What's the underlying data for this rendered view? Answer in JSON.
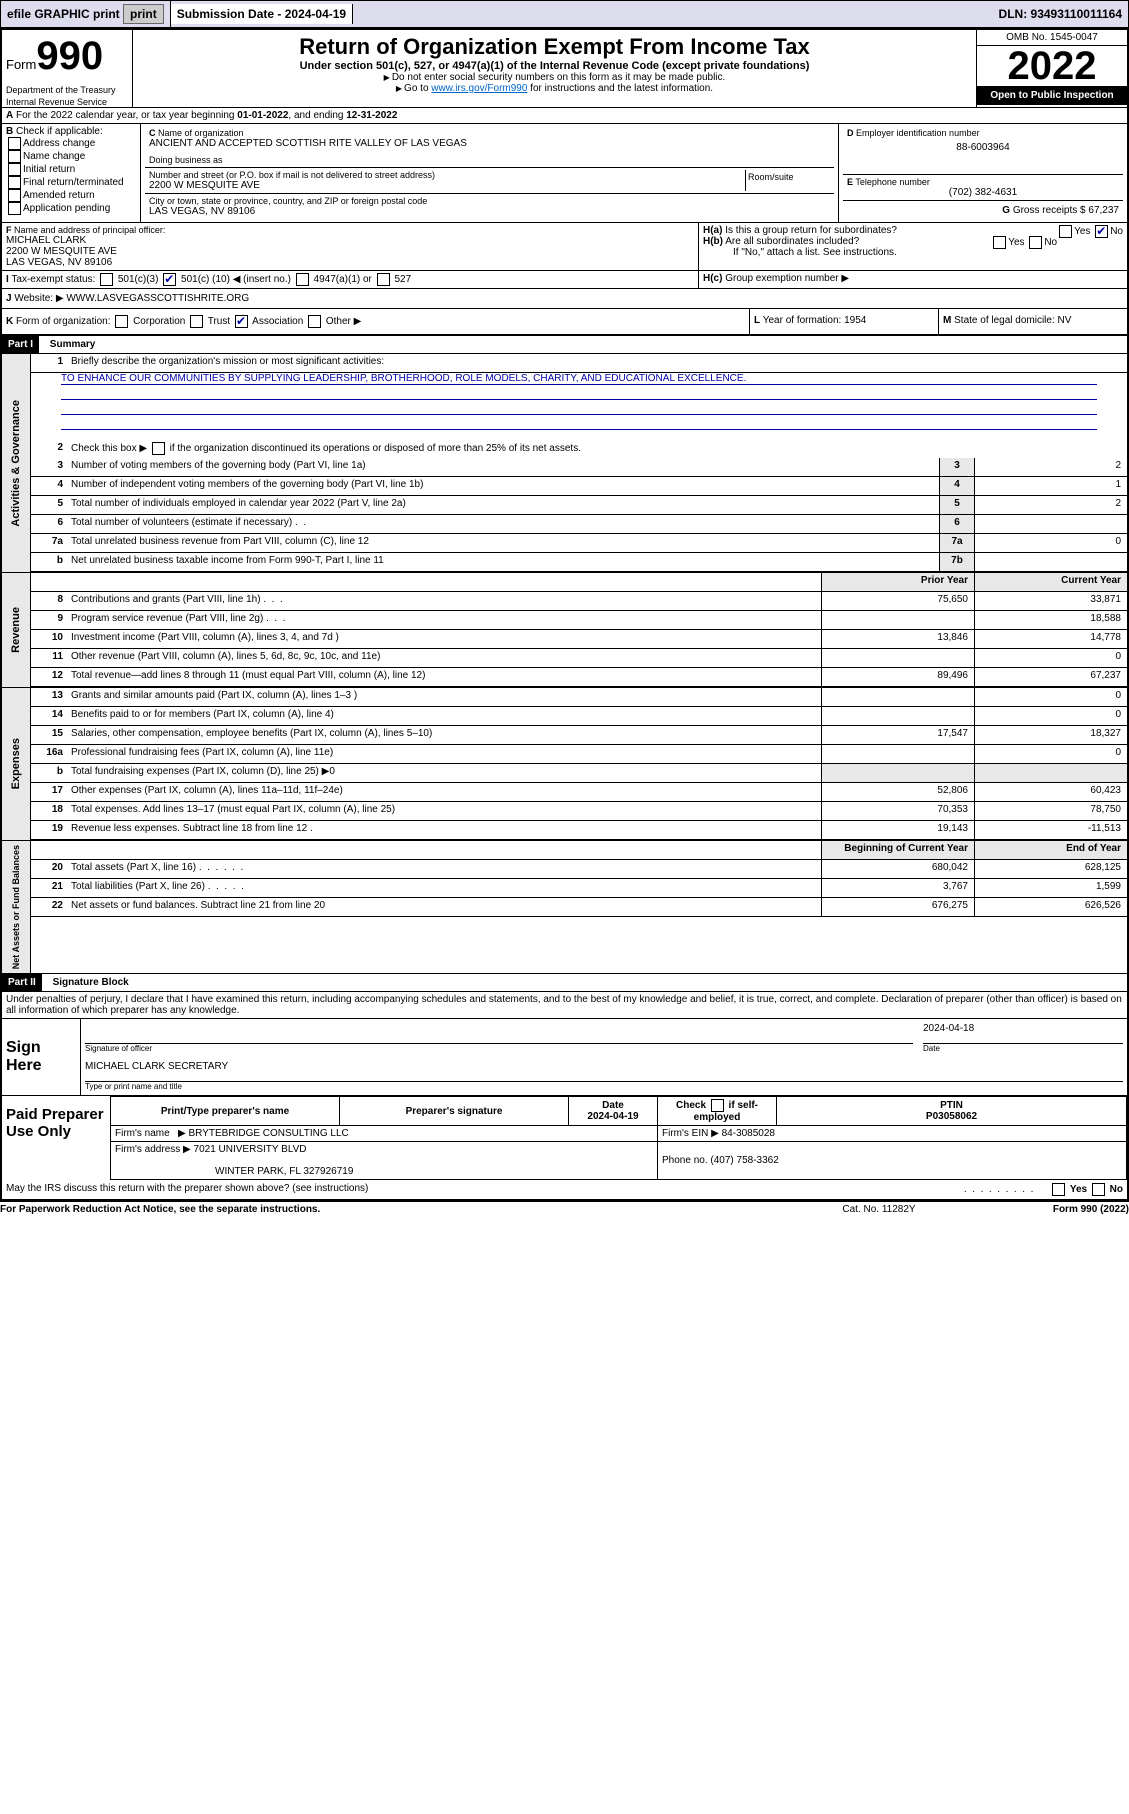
{
  "top_bar": {
    "efile": "efile GRAPHIC print",
    "sub_label": "Submission Date - 2024-04-19",
    "dln": "DLN: 93493110011164"
  },
  "header": {
    "form_label": "Form",
    "form_no": "990",
    "title": "Return of Organization Exempt From Income Tax",
    "sub": "Under section 501(c), 527, or 4947(a)(1) of the Internal Revenue Code (except private foundations)",
    "note1": "Do not enter social security numbers on this form as it may be made public.",
    "note2_pre": "Go to ",
    "note2_link": "www.irs.gov/Form990",
    "note2_post": " for instructions and the latest information.",
    "dept": "Department of the Treasury",
    "irs": "Internal Revenue Service",
    "omb": "OMB No. 1545-0047",
    "year": "2022",
    "inspect": "Open to Public Inspection"
  },
  "a_line": {
    "pre": "For the 2022 calendar year, or tax year beginning ",
    "begin": "01-01-2022",
    "mid": ", and ending ",
    "end": "12-31-2022"
  },
  "b": {
    "label": "Check if applicable:",
    "items": [
      "Address change",
      "Name change",
      "Initial return",
      "Final return/terminated",
      "Amended return",
      "Application pending"
    ]
  },
  "c": {
    "label": "Name of organization",
    "name": "ANCIENT AND ACCEPTED SCOTTISH RITE VALLEY OF LAS VEGAS",
    "dba": "Doing business as",
    "street_label": "Number and street (or P.O. box if mail is not delivered to street address)",
    "room": "Room/suite",
    "street": "2200 W MESQUITE AVE",
    "city_label": "City or town, state or province, country, and ZIP or foreign postal code",
    "city": "LAS VEGAS, NV  89106"
  },
  "d": {
    "label": "Employer identification number",
    "val": "88-6003964"
  },
  "e": {
    "label": "Telephone number",
    "val": "(702) 382-4631"
  },
  "g": {
    "label": "Gross receipts $",
    "val": "67,237"
  },
  "f": {
    "label": "Name and address of principal officer:",
    "name": "MICHAEL CLARK",
    "l1": "2200 W MESQUITE AVE",
    "l2": "LAS VEGAS, NV  89106"
  },
  "h": {
    "a": "Is this a group return for subordinates?",
    "b": "Are all subordinates included?",
    "note": "If \"No,\" attach a list. See instructions.",
    "c": "Group exemption number"
  },
  "i": {
    "label": "Tax-exempt status:",
    "o1": "501(c)(3)",
    "o2_pre": "501(c) (",
    "o2_val": "10",
    "o2_post": ") ◀ (insert no.)",
    "o3": "4947(a)(1) or",
    "o4": "527"
  },
  "j": {
    "label": "Website:",
    "val": "WWW.LASVEGASSCOTTISHRITE.ORG"
  },
  "k": {
    "label": "Form of organization:",
    "opts": [
      "Corporation",
      "Trust",
      "Association",
      "Other"
    ]
  },
  "l": {
    "label": "Year of formation:",
    "val": "1954"
  },
  "m": {
    "label": "State of legal domicile:",
    "val": "NV"
  },
  "part1": {
    "label": "Part I",
    "title": "Summary"
  },
  "summary": {
    "q1": "Briefly describe the organization's mission or most significant activities:",
    "mission": "TO ENHANCE OUR COMMUNITIES BY SUPPLYING LEADERSHIP, BROTHERHOOD, ROLE MODELS, CHARITY, AND EDUCATIONAL EXCELLENCE.",
    "q2": "Check this box ▶       if the organization discontinued its operations or disposed of more than 25% of its net assets."
  },
  "gov_rows": [
    {
      "n": "3",
      "d": "Number of voting members of the governing body (Part VI, line 1a)",
      "rn": "3",
      "v": "2"
    },
    {
      "n": "4",
      "d": "Number of independent voting members of the governing body (Part VI, line 1b)",
      "rn": "4",
      "v": "1"
    },
    {
      "n": "5",
      "d": "Total number of individuals employed in calendar year 2022 (Part V, line 2a)",
      "rn": "5",
      "v": "2"
    },
    {
      "n": "6",
      "d": "Total number of volunteers (estimate if necessary)",
      "rn": "6",
      "v": ""
    },
    {
      "n": "7a",
      "d": "Total unrelated business revenue from Part VIII, column (C), line 12",
      "rn": "7a",
      "v": "0"
    },
    {
      "n": "b",
      "d": "Net unrelated business taxable income from Form 990-T, Part I, line 11",
      "rn": "7b",
      "v": ""
    }
  ],
  "col_hdrs": {
    "py": "Prior Year",
    "cy": "Current Year"
  },
  "rev_rows": [
    {
      "n": "8",
      "d": "Contributions and grants (Part VIII, line 1h)",
      "py": "75,650",
      "cy": "33,871"
    },
    {
      "n": "9",
      "d": "Program service revenue (Part VIII, line 2g)",
      "py": "",
      "cy": "18,588"
    },
    {
      "n": "10",
      "d": "Investment income (Part VIII, column (A), lines 3, 4, and 7d )",
      "py": "13,846",
      "cy": "14,778"
    },
    {
      "n": "11",
      "d": "Other revenue (Part VIII, column (A), lines 5, 6d, 8c, 9c, 10c, and 11e)",
      "py": "",
      "cy": "0"
    },
    {
      "n": "12",
      "d": "Total revenue—add lines 8 through 11 (must equal Part VIII, column (A), line 12)",
      "py": "89,496",
      "cy": "67,237"
    }
  ],
  "exp_rows": [
    {
      "n": "13",
      "d": "Grants and similar amounts paid (Part IX, column (A), lines 1–3 )",
      "py": "",
      "cy": "0"
    },
    {
      "n": "14",
      "d": "Benefits paid to or for members (Part IX, column (A), line 4)",
      "py": "",
      "cy": "0"
    },
    {
      "n": "15",
      "d": "Salaries, other compensation, employee benefits (Part IX, column (A), lines 5–10)",
      "py": "17,547",
      "cy": "18,327"
    },
    {
      "n": "16a",
      "d": "Professional fundraising fees (Part IX, column (A), line 11e)",
      "py": "",
      "cy": "0"
    },
    {
      "n": "b",
      "d": "Total fundraising expenses (Part IX, column (D), line 25) ▶0",
      "py": "—",
      "cy": "—"
    },
    {
      "n": "17",
      "d": "Other expenses (Part IX, column (A), lines 11a–11d, 11f–24e)",
      "py": "52,806",
      "cy": "60,423"
    },
    {
      "n": "18",
      "d": "Total expenses. Add lines 13–17 (must equal Part IX, column (A), line 25)",
      "py": "70,353",
      "cy": "78,750"
    },
    {
      "n": "19",
      "d": "Revenue less expenses. Subtract line 18 from line 12",
      "py": "19,143",
      "cy": "-11,513"
    }
  ],
  "na_hdrs": {
    "by": "Beginning of Current Year",
    "ey": "End of Year"
  },
  "na_rows": [
    {
      "n": "20",
      "d": "Total assets (Part X, line 16)",
      "py": "680,042",
      "cy": "628,125"
    },
    {
      "n": "21",
      "d": "Total liabilities (Part X, line 26)",
      "py": "3,767",
      "cy": "1,599"
    },
    {
      "n": "22",
      "d": "Net assets or fund balances. Subtract line 21 from line 20",
      "py": "676,275",
      "cy": "626,526"
    }
  ],
  "sections": {
    "gov": "Activities & Governance",
    "rev": "Revenue",
    "exp": "Expenses",
    "na": "Net Assets or Fund Balances"
  },
  "part2": {
    "label": "Part II",
    "title": "Signature Block"
  },
  "penalty": "Under penalties of perjury, I declare that I have examined this return, including accompanying schedules and statements, and to the best of my knowledge and belief, it is true, correct, and complete. Declaration of preparer (other than officer) is based on all information of which preparer has any knowledge.",
  "sign": {
    "here": "Sign Here",
    "sig": "Signature of officer",
    "date": "Date",
    "date_val": "2024-04-18",
    "name": "MICHAEL CLARK  SECRETARY",
    "name_lbl": "Type or print name and title"
  },
  "prep": {
    "title": "Paid Preparer Use Only",
    "h": [
      "Print/Type preparer's name",
      "Preparer's signature",
      "Date",
      "",
      "PTIN"
    ],
    "date": "2024-04-19",
    "check": "Check         if self-employed",
    "ptin": "P03058062",
    "firm": "Firm's name",
    "firm_v": "BRYTEBRIDGE CONSULTING LLC",
    "ein": "Firm's EIN ▶",
    "ein_v": "84-3085028",
    "addr": "Firm's address ▶",
    "addr_v": "7021 UNIVERSITY BLVD",
    "addr_v2": "WINTER PARK, FL  327926719",
    "phone": "Phone no.",
    "phone_v": "(407) 758-3362"
  },
  "footer": {
    "irs_q": "May the IRS discuss this return with the preparer shown above? (see instructions)",
    "paperwork": "For Paperwork Reduction Act Notice, see the separate instructions.",
    "cat": "Cat. No. 11282Y",
    "form": "Form 990 (2022)"
  }
}
